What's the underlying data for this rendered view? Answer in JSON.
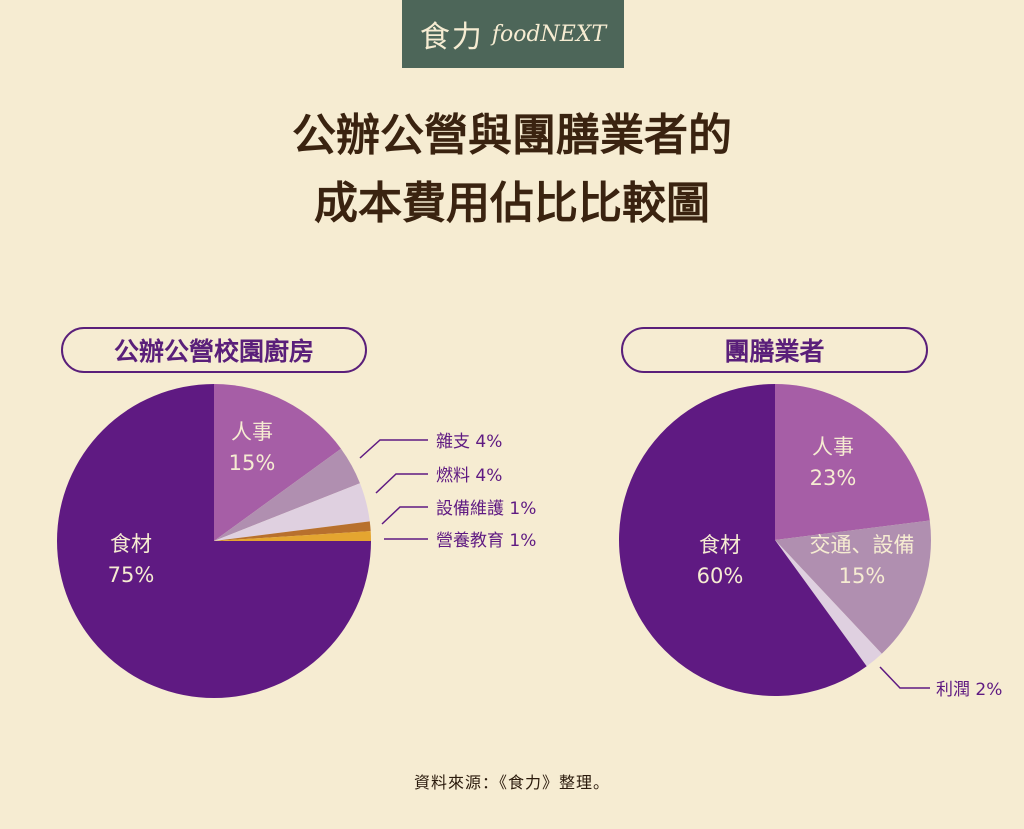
{
  "logo": {
    "cn": "食力",
    "en": "foodNEXT"
  },
  "title": {
    "line1": "公辦公營與團膳業者的",
    "line2": "成本費用佔比比較圖"
  },
  "source": "資料來源：《食力》整理。",
  "chart_data": [
    {
      "type": "pie",
      "title": "公辦公營校園廚房",
      "slices": [
        {
          "label": "人事",
          "value": 15,
          "value_text": "15%",
          "color": "#a65ea6",
          "label_position": "inside"
        },
        {
          "label": "雜支",
          "value": 4,
          "value_text": "4%",
          "color": "#b08fb0",
          "label_position": "outside"
        },
        {
          "label": "燃料",
          "value": 4,
          "value_text": "4%",
          "color": "#dfd0e0",
          "label_position": "outside"
        },
        {
          "label": "設備維護",
          "value": 1,
          "value_text": "1%",
          "color": "#b8702d",
          "label_position": "outside"
        },
        {
          "label": "營養教育",
          "value": 1,
          "value_text": "1%",
          "color": "#e4a530",
          "label_position": "outside"
        },
        {
          "label": "食材",
          "value": 75,
          "value_text": "75%",
          "color": "#5f1a82",
          "label_position": "inside"
        }
      ]
    },
    {
      "type": "pie",
      "title": "團膳業者",
      "slices": [
        {
          "label": "人事",
          "value": 23,
          "value_text": "23%",
          "color": "#a65ea6",
          "label_position": "inside"
        },
        {
          "label": "交通、設備",
          "value": 15,
          "value_text": "15%",
          "color": "#b08fb0",
          "label_position": "inside"
        },
        {
          "label": "利潤",
          "value": 2,
          "value_text": "2%",
          "color": "#dfd0e0",
          "label_position": "outside"
        },
        {
          "label": "食材",
          "value": 60,
          "value_text": "60%",
          "color": "#5f1a82",
          "label_position": "inside"
        }
      ]
    }
  ]
}
